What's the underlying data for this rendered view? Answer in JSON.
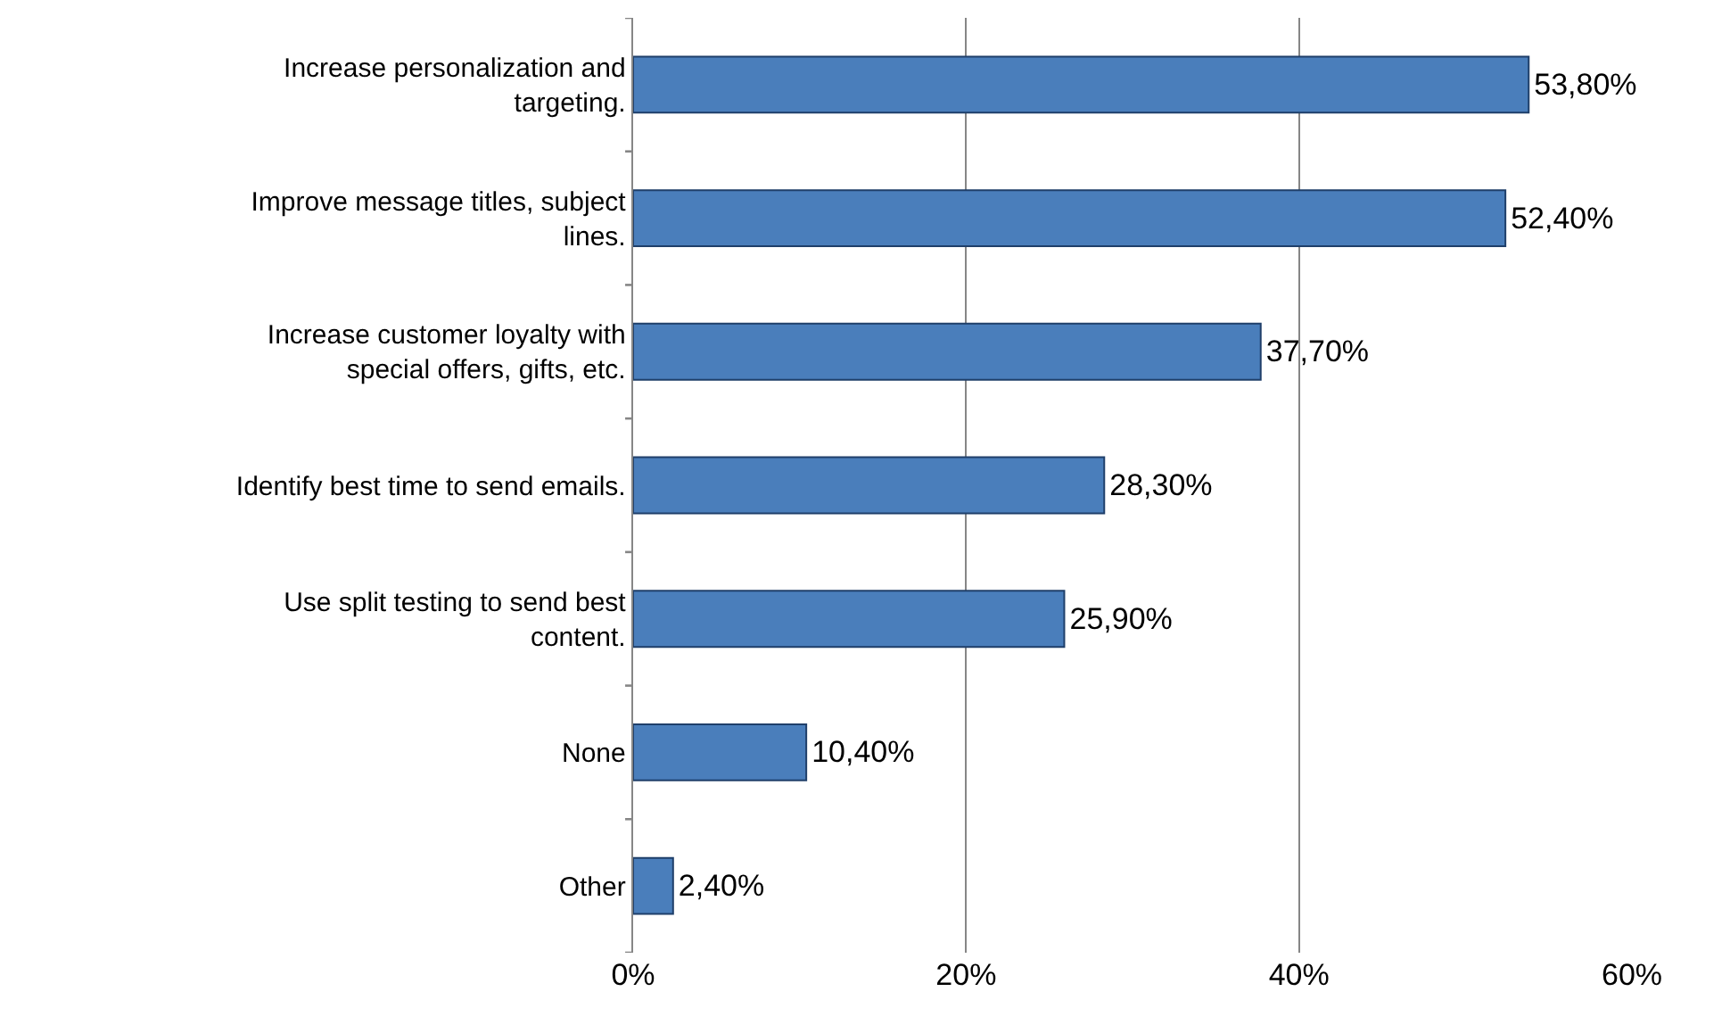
{
  "chart_data": {
    "type": "bar",
    "orientation": "horizontal",
    "categories": [
      "Increase personalization and targeting.",
      "Improve message titles, subject lines.",
      "Increase customer loyalty with special offers, gifts, etc.",
      "Identify best time to send emails.",
      "Use split testing to send best content.",
      "None",
      "Other"
    ],
    "values": [
      53.8,
      52.4,
      37.7,
      28.3,
      25.9,
      10.4,
      2.4
    ],
    "value_labels": [
      "53,80%",
      "52,40%",
      "37,70%",
      "28,30%",
      "25,90%",
      "10,40%",
      "2,40%"
    ],
    "color": "#4a7ebb",
    "xlim": [
      0,
      60
    ],
    "xticks": [
      {
        "value": 0,
        "label": "0%"
      },
      {
        "value": 20,
        "label": "20%"
      },
      {
        "value": 40,
        "label": "40%"
      },
      {
        "value": 60,
        "label": "60%"
      }
    ],
    "grid": "x",
    "legend": false
  }
}
